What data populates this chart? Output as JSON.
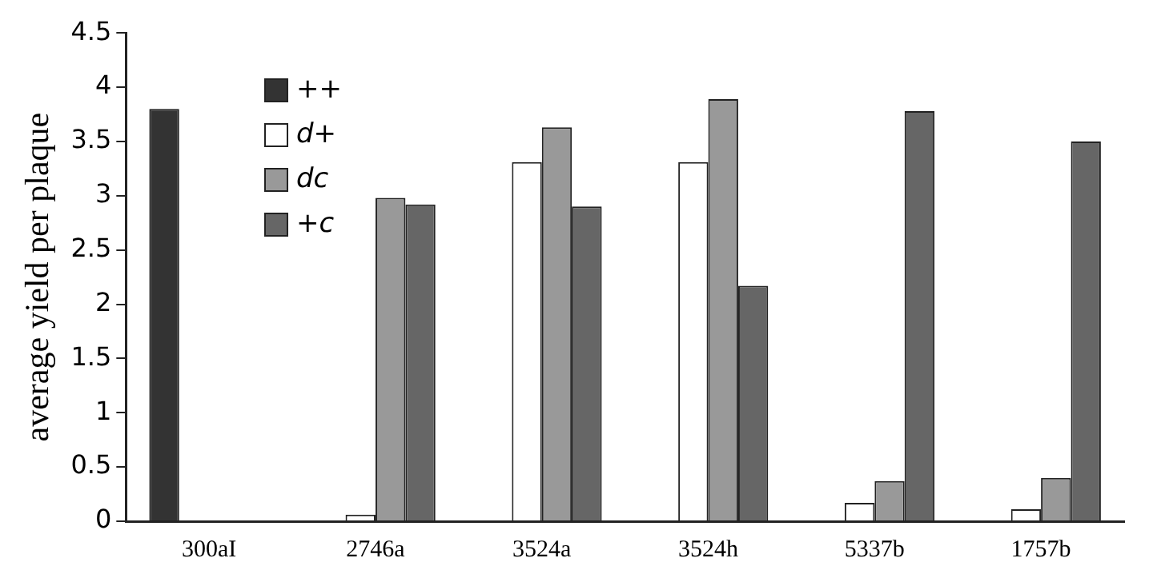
{
  "chart_data": {
    "type": "bar",
    "ylabel": "average yield per plaque",
    "categories": [
      "300aI",
      "2746a",
      "3524a",
      "3524h",
      "5337b",
      "1757b"
    ],
    "series": [
      {
        "name": "++",
        "color": "#333333",
        "values": [
          3.8,
          null,
          null,
          null,
          null,
          null
        ]
      },
      {
        "name": "d+",
        "color": "#ffffff",
        "values": [
          null,
          0.06,
          3.31,
          3.31,
          0.17,
          0.11
        ]
      },
      {
        "name": "dc",
        "color": "#999999",
        "values": [
          null,
          2.98,
          3.63,
          3.89,
          0.37,
          0.4
        ]
      },
      {
        "name": "+c",
        "color": "#666666",
        "values": [
          null,
          2.92,
          2.9,
          2.17,
          3.78,
          3.5
        ]
      }
    ],
    "ylim": [
      0,
      4.5
    ],
    "yticks": [
      0,
      0.5,
      1,
      1.5,
      2,
      2.5,
      3,
      3.5,
      4,
      4.5
    ],
    "grid": false,
    "legend": "top left"
  }
}
